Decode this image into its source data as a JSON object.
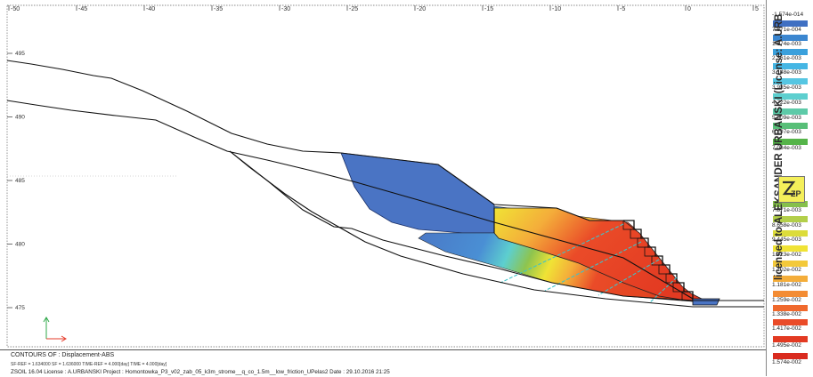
{
  "x_axis": {
    "ticks": [
      {
        "label": "-50",
        "value": -50
      },
      {
        "label": "-45",
        "value": -45
      },
      {
        "label": "-40",
        "value": -40
      },
      {
        "label": "-35",
        "value": -35
      },
      {
        "label": "-30",
        "value": -30
      },
      {
        "label": "-25",
        "value": -25
      },
      {
        "label": "-20",
        "value": -20
      },
      {
        "label": "-15",
        "value": -15
      },
      {
        "label": "-10",
        "value": -10
      },
      {
        "label": "-5",
        "value": -5
      },
      {
        "label": "0",
        "value": 0
      },
      {
        "label": "5",
        "value": 5
      }
    ]
  },
  "y_axis": {
    "ticks": [
      {
        "label": "495",
        "value": 495
      },
      {
        "label": "490",
        "value": 490
      },
      {
        "label": "485",
        "value": 485
      },
      {
        "label": "480",
        "value": 480
      },
      {
        "label": "475",
        "value": 475
      }
    ]
  },
  "legend": {
    "items": [
      {
        "label": "-1.574e-014",
        "color": "#ffffff"
      },
      {
        "label": "7.871e-004",
        "color": "#3f6fc2"
      },
      {
        "label": "1.574e-003",
        "color": "#3b86d0"
      },
      {
        "label": "2.361e-003",
        "color": "#3aa0dc"
      },
      {
        "label": "3.148e-003",
        "color": "#45b6e4"
      },
      {
        "label": "3.935e-003",
        "color": "#56c6e2"
      },
      {
        "label": "4.722e-003",
        "color": "#5dcfcf"
      },
      {
        "label": "5.509e-003",
        "color": "#5dcaa8"
      },
      {
        "label": "6.297e-003",
        "color": "#58bf78"
      },
      {
        "label": "7.084e-003",
        "color": "#55b449"
      },
      {
        "label": "7.871e-003",
        "color": "#86c04b"
      },
      {
        "label": "8.658e-003",
        "color": "#b3cf4a"
      },
      {
        "label": "9.445e-003",
        "color": "#dcdc3a"
      },
      {
        "label": "1.023e-002",
        "color": "#f0e335"
      },
      {
        "label": "1.102e-002",
        "color": "#f3c93a"
      },
      {
        "label": "1.181e-002",
        "color": "#f4ad3a"
      },
      {
        "label": "1.259e-002",
        "color": "#f38c34"
      },
      {
        "label": "1.338e-002",
        "color": "#f0692d"
      },
      {
        "label": "1.417e-002",
        "color": "#ea4b28"
      },
      {
        "label": "1.495e-002",
        "color": "#e33a22"
      },
      {
        "label": "1.574e-002",
        "color": "#d92b1f"
      }
    ]
  },
  "license_text": "licensed to ALEKSANDER URBANSKI (License: A.URBANSKI)",
  "logo_text": "ZP",
  "footer": {
    "title": "CONTOURS OF : Displacement-ABS",
    "params": "SF-REF = 1.634000   SF = 1.636000   TIME-REF = 4.000[day]   TIME = 4.000[day]",
    "info": "ZSOIL 16.04   License :  A.URBANSKI   Project : Homontowka_P3_v02_zab_05_k3m_strome__q_co_1.5m__low_friction_UPelas2     Date : 29.10.2016  21:25"
  },
  "colors": {
    "bg_blue": "#4a74c4",
    "geometry_line": "#111111",
    "anchor": "#3ec3c9"
  }
}
